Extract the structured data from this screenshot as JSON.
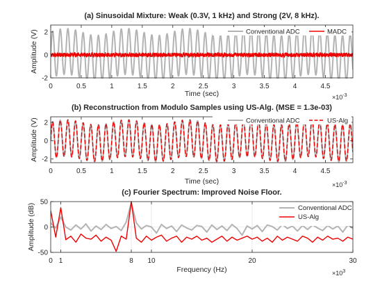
{
  "figure": {
    "colors": {
      "conventional": "#b3b3b3",
      "modulo": "#ee0000",
      "axes": "#262626",
      "grid": "#dcdcdc"
    }
  },
  "chart_data": [
    {
      "type": "line",
      "title": "(a) Sinusoidal Mixture: Weak (0.3V, 1 kHz) and Strong (2V, 8 kHz).",
      "xlabel": "Time (sec)",
      "ylabel": "Amplitude (V)",
      "x_exponent": "×10",
      "x_exponent_power": "-3",
      "xlim": [
        0,
        4.95
      ],
      "ylim": [
        -2,
        2.6
      ],
      "xticks": [
        0,
        0.5,
        1,
        1.5,
        2,
        2.5,
        3,
        3.5,
        4,
        4.5
      ],
      "xtick_labels": [
        "0",
        "0.5",
        "1",
        "1.5",
        "2",
        "2.5",
        "3",
        "3.5",
        "4",
        "4.5"
      ],
      "yticks": [
        -2,
        0,
        2
      ],
      "ytick_labels": [
        "-2",
        "0",
        "2"
      ],
      "grid": false,
      "legend": {
        "placement": "top-right",
        "orientation": "horizontal"
      },
      "series": [
        {
          "name": "Conventional ADC",
          "style": "solid",
          "color": "#b3b3b3",
          "signal": {
            "components": [
              {
                "amplitude": 0.3,
                "freq_hz": 1000
              },
              {
                "amplitude": 2,
                "freq_hz": 8000
              }
            ],
            "phase": "sin"
          }
        },
        {
          "name": "MADC",
          "style": "solid",
          "color": "#ee0000",
          "signal": {
            "modulo_threshold": 0.3,
            "of_series": "Conventional ADC",
            "noise_amplitude": 0.05
          }
        }
      ]
    },
    {
      "type": "line",
      "title": "(b) Reconstruction from Modulo Samples using US-Alg. (MSE = 1.3e-03)",
      "xlabel": "Time (sec)",
      "ylabel": "Amplitude (V)",
      "x_exponent": "×10",
      "x_exponent_power": "-3",
      "xlim": [
        0,
        4.95
      ],
      "ylim": [
        -2.4,
        2.6
      ],
      "xticks": [
        0,
        0.5,
        1,
        1.5,
        2,
        2.5,
        3,
        3.5,
        4,
        4.5
      ],
      "xtick_labels": [
        "0",
        "0.5",
        "1",
        "1.5",
        "2",
        "2.5",
        "3",
        "3.5",
        "4",
        "4.5"
      ],
      "yticks": [
        -2,
        0,
        2
      ],
      "ytick_labels": [
        "-2",
        "0",
        "2"
      ],
      "grid": false,
      "legend": {
        "placement": "top-right",
        "orientation": "horizontal"
      },
      "series": [
        {
          "name": "Conventional ADC",
          "style": "solid",
          "color": "#b3b3b3",
          "signal": {
            "components": [
              {
                "amplitude": 0.3,
                "freq_hz": 1000
              },
              {
                "amplitude": 2,
                "freq_hz": 8000
              }
            ],
            "phase": "sin"
          }
        },
        {
          "name": "US-Alg",
          "style": "dashed",
          "color": "#ee0000",
          "signal": {
            "same_as": "Conventional ADC",
            "error_amplitude": 0.04
          }
        }
      ]
    },
    {
      "type": "line",
      "title": "(c) Fourier Spectrum: Improved Noise Floor.",
      "xlabel": "Frequency (Hz)",
      "ylabel": "Amplitude (dB)",
      "x_exponent": "×10",
      "x_exponent_power": "3",
      "xlim": [
        0,
        30
      ],
      "ylim": [
        -50,
        50
      ],
      "xticks": [
        0,
        1,
        8,
        10,
        20,
        30
      ],
      "xtick_labels": [
        "0",
        "1",
        "8",
        "10",
        "20",
        "30"
      ],
      "yticks": [
        -50,
        0,
        50
      ],
      "ytick_labels": [
        "-50",
        "0",
        "50"
      ],
      "grid": true,
      "legend": {
        "placement": "top-right",
        "orientation": "vertical"
      },
      "series": [
        {
          "name": "Conventional ADC",
          "style": "solid",
          "color": "#b3b3b3",
          "x": [
            0,
            0.5,
            1,
            1.5,
            2,
            2.5,
            3,
            3.5,
            4,
            4.5,
            5,
            5.5,
            6,
            6.5,
            7,
            7.5,
            8,
            8.5,
            9,
            9.5,
            10,
            10.5,
            11,
            11.5,
            12,
            12.5,
            13,
            13.5,
            14,
            14.5,
            15,
            15.5,
            16,
            16.5,
            17,
            17.5,
            18,
            18.5,
            19,
            19.5,
            20,
            20.5,
            21,
            21.5,
            22,
            22.5,
            23,
            23.5,
            24,
            24.5,
            25,
            25.5,
            26,
            26.5,
            27,
            27.5,
            28,
            28.5,
            29,
            29.5,
            30
          ],
          "y": [
            8,
            -2,
            20,
            0,
            -6,
            4,
            -4,
            6,
            -8,
            2,
            -5,
            5,
            -3,
            1,
            -7,
            10,
            48,
            8,
            -4,
            3,
            0,
            -12,
            5,
            -3,
            2,
            -9,
            4,
            -2,
            -6,
            3,
            1,
            -10,
            4,
            -5,
            2,
            -7,
            5,
            -3,
            -16,
            2,
            -4,
            3,
            -9,
            4,
            1,
            -6,
            5,
            -3,
            2,
            -8,
            3,
            -5,
            4,
            -2,
            -7,
            3,
            -4,
            2,
            -10,
            4,
            -3
          ]
        },
        {
          "name": "US-Alg",
          "style": "solid",
          "color": "#ee0000",
          "x": [
            0,
            0.5,
            1,
            1.5,
            2,
            2.5,
            3,
            3.5,
            4,
            4.5,
            5,
            5.5,
            6,
            6.5,
            7,
            7.5,
            8,
            8.5,
            9,
            9.5,
            10,
            10.5,
            11,
            11.5,
            12,
            12.5,
            13,
            13.5,
            14,
            14.5,
            15,
            15.5,
            16,
            16.5,
            17,
            17.5,
            18,
            18.5,
            19,
            19.5,
            20,
            20.5,
            21,
            21.5,
            22,
            22.5,
            23,
            23.5,
            24,
            24.5,
            25,
            25.5,
            26,
            26.5,
            27,
            27.5,
            28,
            28.5,
            29,
            29.5,
            30
          ],
          "y": [
            32,
            -20,
            38,
            -25,
            -18,
            -30,
            -14,
            -22,
            -24,
            -16,
            -28,
            -20,
            -26,
            -48,
            -18,
            -24,
            50,
            -22,
            -30,
            -18,
            -26,
            -20,
            -16,
            -28,
            -22,
            -18,
            -30,
            -20,
            -24,
            -18,
            -26,
            -22,
            -30,
            -24,
            -18,
            -28,
            -20,
            -26,
            -22,
            -18,
            -24,
            -20,
            -28,
            -22,
            -30,
            -18,
            -26,
            -20,
            -24,
            -28,
            -18,
            -22,
            -30,
            -20,
            -26,
            -18,
            -24,
            -22,
            -28,
            -20,
            -24
          ]
        }
      ]
    }
  ]
}
